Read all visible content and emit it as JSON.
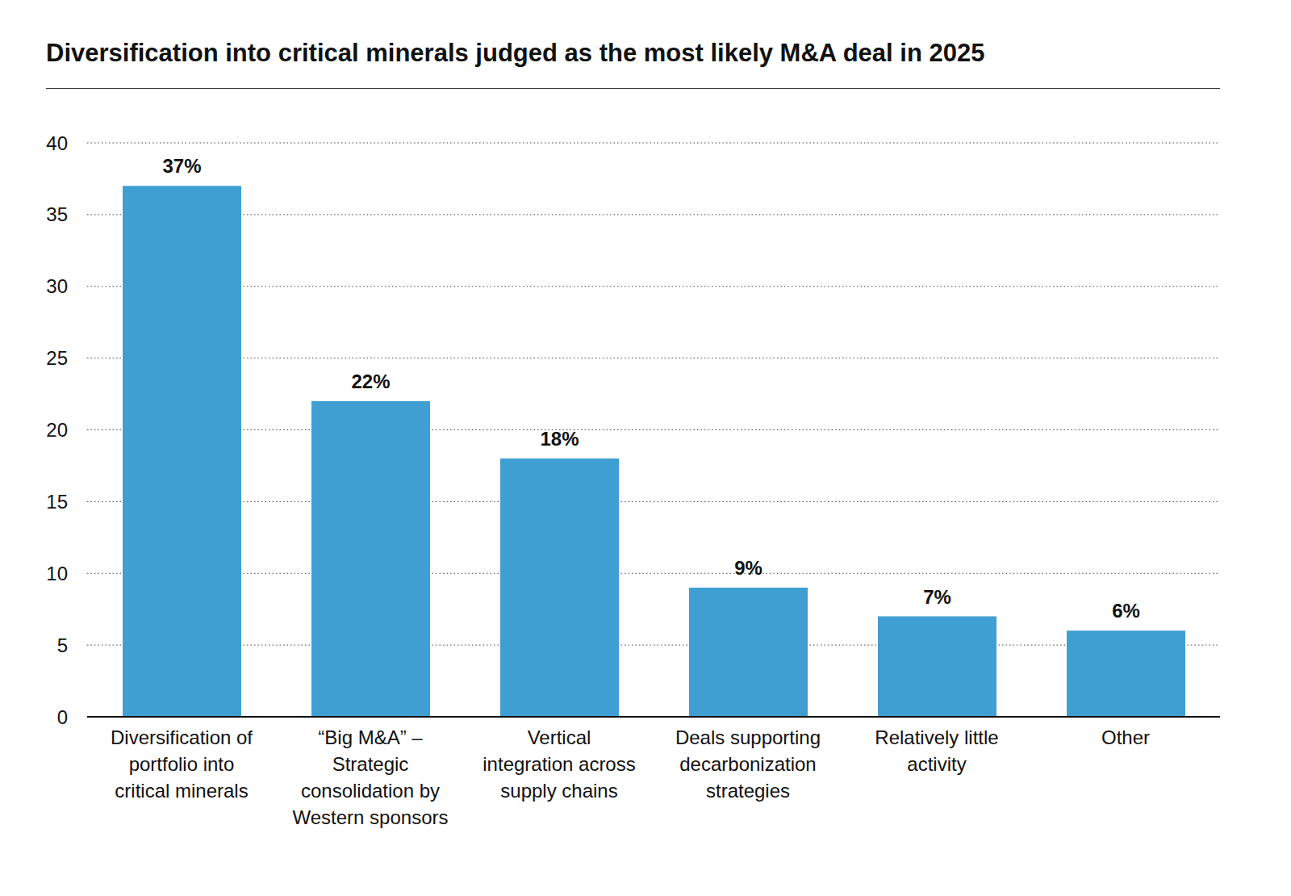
{
  "chart_data": {
    "type": "bar",
    "title": "Diversification into critical minerals judged as the most likely M&A deal in 2025",
    "categories": [
      "Diversification of portfolio into critical minerals",
      "“Big M&A” – Strategic consolidation by Western sponsors",
      "Vertical integration across supply chains",
      "Deals supporting decarbonization strategies",
      "Relatively little activity",
      "Other"
    ],
    "values": [
      37,
      22,
      18,
      9,
      7,
      6
    ],
    "value_labels": [
      "37%",
      "22%",
      "18%",
      "9%",
      "7%",
      "6%"
    ],
    "color": "#3f9fd3",
    "ylim": [
      0,
      40
    ],
    "yticks": [
      0,
      5,
      10,
      15,
      20,
      25,
      30,
      35,
      40
    ],
    "grid": true,
    "data_labels": true
  }
}
